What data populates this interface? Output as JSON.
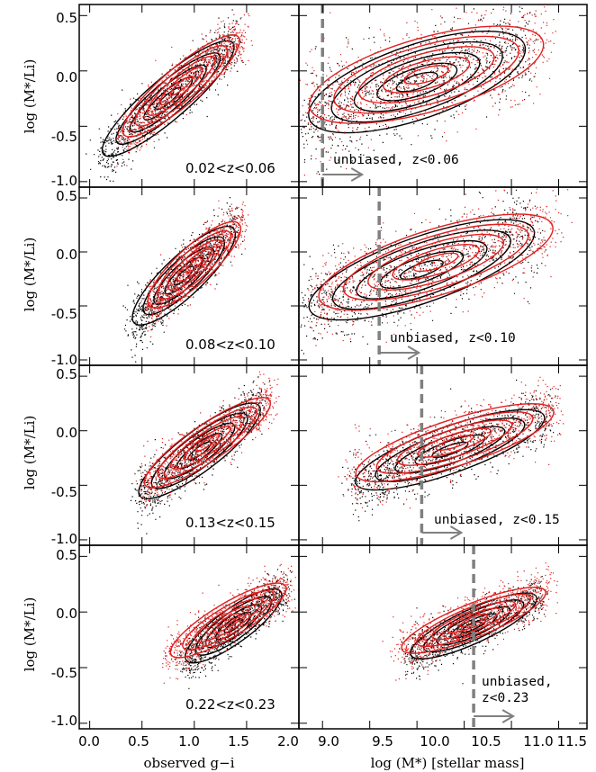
{
  "colors": {
    "black_sample": "#000000",
    "red_sample": "#e02020",
    "cut_line": "#808080"
  },
  "axes": {
    "xlabel_left": "observed g−i",
    "xlabel_right": "log (M*) [stellar mass]",
    "ylabel": "log (M*/Li)",
    "left_xticks": [
      "0.0",
      "0.5",
      "1.0",
      "1.5",
      "2.0"
    ],
    "right_xticks": [
      "9.0",
      "9.5",
      "10.0",
      "10.5",
      "11.0",
      "11.5"
    ],
    "yticks": [
      "0.5",
      "0.0",
      "-0.5",
      "-1.0"
    ]
  },
  "chart_data": [
    {
      "type": "scatter",
      "panel": "left-1",
      "redshift_label": "0.02<z<0.06",
      "xlabel": "",
      "ylabel": "log (M*/Li)",
      "xlim": [
        -0.1,
        2.0
      ],
      "ylim": [
        -1.05,
        0.6
      ],
      "series": [
        {
          "color": "#000000",
          "relation": {
            "x": [
              0.1,
              1.4
            ],
            "y": [
              -0.78,
              0.28
            ]
          },
          "width": 0.12,
          "points": 900
        },
        {
          "color": "#e02020",
          "relation": {
            "x": [
              0.3,
              1.45
            ],
            "y": [
              -0.6,
              0.33
            ]
          },
          "width": 0.11,
          "points": 900
        }
      ]
    },
    {
      "type": "scatter",
      "panel": "right-1",
      "redshift_label": "unbiased, z<0.06",
      "xlim": [
        8.75,
        11.8
      ],
      "ylim": [
        -1.05,
        0.6
      ],
      "mass_cut": 9.0,
      "series": [
        {
          "color": "#000000",
          "relation": {
            "x": [
              8.8,
              11.2
            ],
            "y": [
              -0.45,
              0.25
            ]
          },
          "width": 0.22,
          "points": 900
        },
        {
          "color": "#e02020",
          "relation": {
            "x": [
              8.8,
              11.4
            ],
            "y": [
              -0.35,
              0.28
            ]
          },
          "width": 0.22,
          "points": 900
        }
      ]
    },
    {
      "type": "scatter",
      "panel": "left-2",
      "redshift_label": "0.08<z<0.10",
      "xlim": [
        -0.1,
        2.0
      ],
      "ylim": [
        -1.05,
        0.6
      ],
      "series": [
        {
          "color": "#000000",
          "relation": {
            "x": [
              0.4,
              1.4
            ],
            "y": [
              -0.68,
              0.24
            ]
          },
          "width": 0.12,
          "points": 900
        },
        {
          "color": "#e02020",
          "relation": {
            "x": [
              0.55,
              1.45
            ],
            "y": [
              -0.52,
              0.28
            ]
          },
          "width": 0.11,
          "points": 900
        }
      ]
    },
    {
      "type": "scatter",
      "panel": "right-2",
      "redshift_label": "unbiased, z<0.10",
      "xlim": [
        8.75,
        11.8
      ],
      "ylim": [
        -1.05,
        0.6
      ],
      "mass_cut": 9.6,
      "series": [
        {
          "color": "#000000",
          "relation": {
            "x": [
              8.8,
              11.3
            ],
            "y": [
              -0.55,
              0.22
            ]
          },
          "width": 0.2,
          "points": 900
        },
        {
          "color": "#e02020",
          "relation": {
            "x": [
              8.9,
              11.5
            ],
            "y": [
              -0.45,
              0.26
            ]
          },
          "width": 0.2,
          "points": 900
        }
      ]
    },
    {
      "type": "scatter",
      "panel": "left-3",
      "redshift_label": "0.13<z<0.15",
      "xlim": [
        -0.1,
        2.0
      ],
      "ylim": [
        -1.05,
        0.6
      ],
      "series": [
        {
          "color": "#000000",
          "relation": {
            "x": [
              0.45,
              1.65
            ],
            "y": [
              -0.62,
              0.25
            ]
          },
          "width": 0.12,
          "points": 900
        },
        {
          "color": "#e02020",
          "relation": {
            "x": [
              0.5,
              1.75
            ],
            "y": [
              -0.52,
              0.3
            ]
          },
          "width": 0.11,
          "points": 900
        }
      ]
    },
    {
      "type": "scatter",
      "panel": "right-3",
      "redshift_label": "unbiased, z<0.15",
      "xlim": [
        8.75,
        11.8
      ],
      "ylim": [
        -1.05,
        0.6
      ],
      "mass_cut": 10.05,
      "series": [
        {
          "color": "#000000",
          "relation": {
            "x": [
              9.3,
              11.4
            ],
            "y": [
              -0.5,
              0.15
            ]
          },
          "width": 0.14,
          "points": 900
        },
        {
          "color": "#e02020",
          "relation": {
            "x": [
              9.3,
              11.5
            ],
            "y": [
              -0.42,
              0.2
            ]
          },
          "width": 0.14,
          "points": 900
        }
      ]
    },
    {
      "type": "scatter",
      "panel": "left-4",
      "redshift_label": "0.22<z<0.23",
      "xlim": [
        -0.1,
        2.0
      ],
      "ylim": [
        -1.05,
        0.6
      ],
      "series": [
        {
          "color": "#000000",
          "relation": {
            "x": [
              0.9,
              1.85
            ],
            "y": [
              -0.45,
              0.2
            ]
          },
          "width": 0.1,
          "points": 900
        },
        {
          "color": "#e02020",
          "relation": {
            "x": [
              0.75,
              1.9
            ],
            "y": [
              -0.4,
              0.25
            ]
          },
          "width": 0.1,
          "points": 900
        }
      ]
    },
    {
      "type": "scatter",
      "panel": "right-4",
      "redshift_label_line1": "unbiased,",
      "redshift_label_line2": "z<0.23",
      "xlim": [
        8.75,
        11.8
      ],
      "ylim": [
        -1.05,
        0.6
      ],
      "mass_cut": 10.6,
      "series": [
        {
          "color": "#000000",
          "relation": {
            "x": [
              9.9,
              11.3
            ],
            "y": [
              -0.4,
              0.15
            ]
          },
          "width": 0.1,
          "points": 900
        },
        {
          "color": "#e02020",
          "relation": {
            "x": [
              9.8,
              11.4
            ],
            "y": [
              -0.35,
              0.2
            ]
          },
          "width": 0.1,
          "points": 900
        }
      ]
    }
  ]
}
